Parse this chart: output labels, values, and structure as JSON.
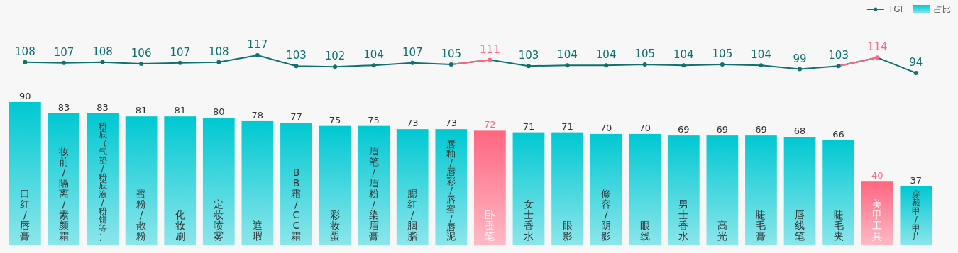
{
  "chart_data": [
    {
      "type": "line",
      "categories": [
        null,
        null,
        null,
        null,
        null,
        null,
        null,
        null,
        null,
        null,
        null,
        null,
        null,
        null,
        null,
        null,
        null,
        null,
        null,
        null,
        null,
        null,
        null,
        null
      ],
      "series": [
        {
          "name": "TGI",
          "color": "#117070",
          "colors": [
            "#117070",
            "#117070",
            "#117070",
            "#117070",
            "#117070",
            "#117070",
            "#117070",
            "#117070",
            "#117070",
            "#117070",
            "#117070",
            "#117070",
            "#ff6680",
            "#117070",
            "#117070",
            "#117070",
            "#117070",
            "#117070",
            "#117070",
            "#117070",
            "#117070",
            "#117070",
            "#ff6680",
            "#117070"
          ],
          "values": [
            108,
            107,
            108,
            106,
            107,
            108,
            117,
            103,
            102,
            104,
            107,
            105,
            111,
            103,
            104,
            104,
            105,
            104,
            105,
            104,
            99,
            103,
            114,
            94
          ]
        }
      ],
      "data_labels": true,
      "legend": "top right",
      "marker": "circle"
    },
    {
      "type": "bar",
      "categories": [
        "口红/唇膏",
        "妆前/隔离/素颜霜",
        "粉底（气垫/粉底液/粉饼等）",
        "蜜粉/散粉",
        "化妆刷",
        "定妆喷雾",
        "遮瑕",
        "BB霜/CC霜",
        "彩妆蛋",
        "眉笔/眉粉/染眉膏",
        "腮红/胭脂",
        "唇釉/唇彩/唇蜜/唇泥",
        "卧蚕笔",
        "女士香水",
        "眼影",
        "修容/阴影",
        "眼线",
        "男士香水",
        "高光",
        "睫毛膏",
        "唇线笔",
        "睫毛夹",
        "美甲工具",
        "穿戴甲/甲片"
      ],
      "series": [
        {
          "name": "占比",
          "color": "#00c8d2",
          "colors": [
            "#00c8d2",
            "#00c8d2",
            "#00c8d2",
            "#00c8d2",
            "#00c8d2",
            "#00c8d2",
            "#00c8d2",
            "#00c8d2",
            "#00c8d2",
            "#00c8d2",
            "#00c8d2",
            "#00c8d2",
            "#ff6680",
            "#00c8d2",
            "#00c8d2",
            "#00c8d2",
            "#00c8d2",
            "#00c8d2",
            "#00c8d2",
            "#00c8d2",
            "#00c8d2",
            "#00c8d2",
            "#ff6680",
            "#00c8d2"
          ],
          "values": [
            90,
            83,
            83,
            81,
            81,
            80,
            78,
            77,
            75,
            75,
            73,
            73,
            72,
            71,
            71,
            70,
            70,
            69,
            69,
            69,
            68,
            66,
            40,
            37
          ]
        }
      ],
      "data_labels": true,
      "legend": "top right"
    }
  ]
}
